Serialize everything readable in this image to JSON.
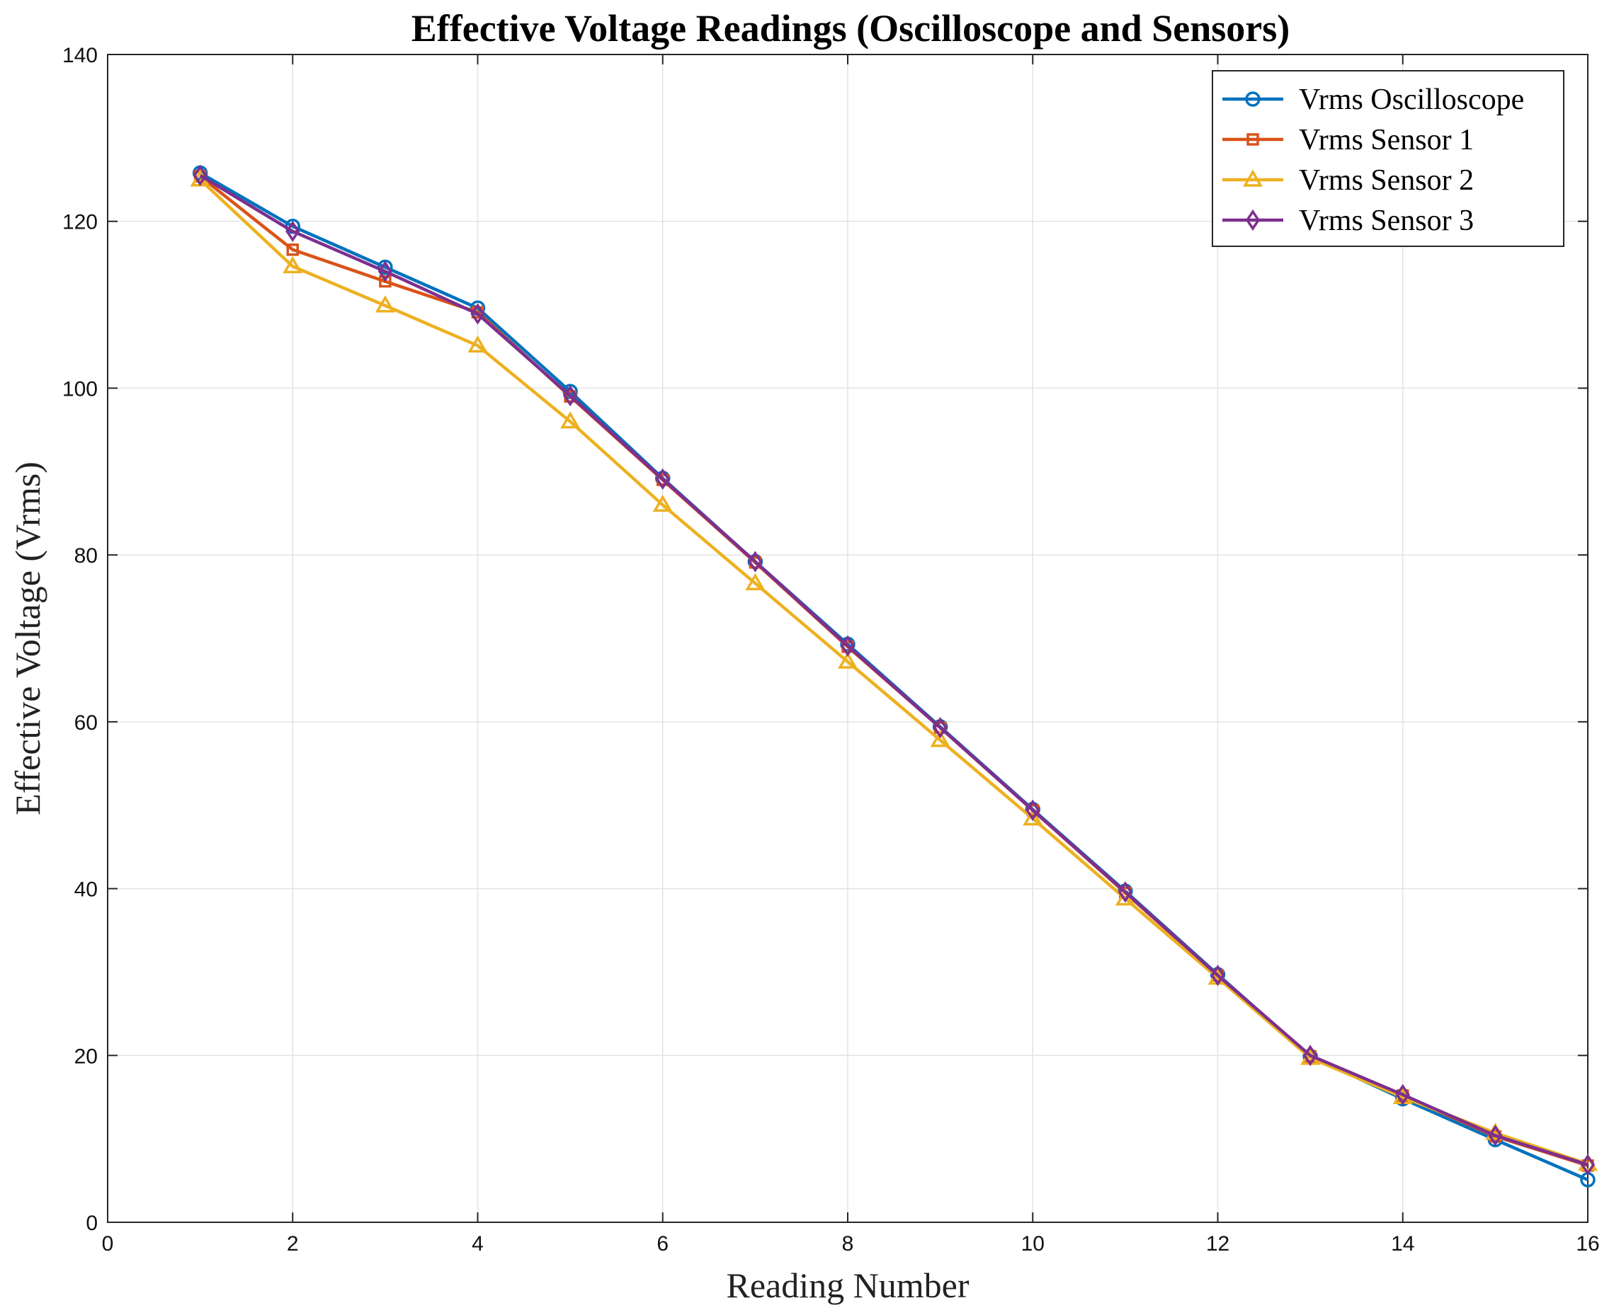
{
  "chart_data": {
    "type": "line",
    "title": "Effective Voltage Readings (Oscilloscope and Sensors)",
    "xlabel": "Reading Number",
    "ylabel": "Effective Voltage (Vrms)",
    "xlim": [
      0,
      16
    ],
    "ylim": [
      0,
      140
    ],
    "xticks": [
      0,
      2,
      4,
      6,
      8,
      10,
      12,
      14,
      16
    ],
    "yticks": [
      0,
      20,
      40,
      60,
      80,
      100,
      120,
      140
    ],
    "grid": true,
    "legend_position": "top-right",
    "x": [
      1,
      2,
      3,
      4,
      5,
      6,
      7,
      8,
      9,
      10,
      11,
      12,
      13,
      14,
      15,
      16
    ],
    "series": [
      {
        "name": "Vrms Oscilloscope",
        "color": "#0072BD",
        "marker": "circle",
        "values": [
          125.8,
          119.4,
          114.5,
          109.6,
          99.6,
          89.2,
          79.2,
          69.3,
          59.4,
          49.5,
          39.7,
          29.7,
          19.9,
          14.8,
          9.9,
          5.1
        ]
      },
      {
        "name": "Vrms Sensor 1",
        "color": "#D95319",
        "marker": "square",
        "values": [
          125.4,
          116.6,
          112.8,
          109.1,
          99.0,
          89.0,
          79.1,
          69.0,
          59.3,
          49.4,
          39.5,
          29.6,
          19.9,
          15.2,
          10.3,
          6.8
        ]
      },
      {
        "name": "Vrms Sensor 2",
        "color": "#EDB120",
        "marker": "triangle",
        "values": [
          125.0,
          114.6,
          109.9,
          105.1,
          96.0,
          86.0,
          76.6,
          67.2,
          57.8,
          48.4,
          38.8,
          29.3,
          19.7,
          15.0,
          10.7,
          7.0
        ]
      },
      {
        "name": "Vrms Sensor 3",
        "color": "#7E2F8E",
        "marker": "diamond",
        "values": [
          125.5,
          118.8,
          114.0,
          108.9,
          99.1,
          89.1,
          79.2,
          69.1,
          59.3,
          49.4,
          39.6,
          29.6,
          20.0,
          15.3,
          10.4,
          6.9
        ]
      }
    ]
  }
}
